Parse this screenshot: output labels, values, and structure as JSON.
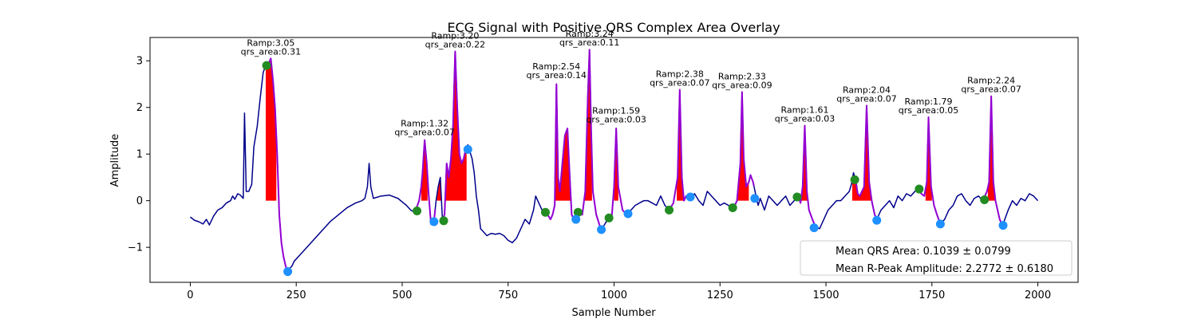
{
  "chart_data": {
    "type": "line",
    "title": "ECG Signal with Positive QRS Complex Area Overlay",
    "xlabel": "Sample Number",
    "ylabel": "Amplitude",
    "xlim": [
      -95,
      2095
    ],
    "ylim": [
      -1.75,
      3.5
    ],
    "xticks": [
      0,
      250,
      500,
      750,
      1000,
      1250,
      1500,
      1750,
      2000
    ],
    "yticks": [
      -1,
      0,
      1,
      2,
      3
    ],
    "grid": false,
    "legend_position": "lower-right",
    "legend": [
      "Mean QRS Area: 0.1039 ± 0.0799",
      "Mean R-Peak Amplitude: 2.2772 ± 0.6180"
    ],
    "colors": {
      "signal": "#00008b",
      "qrs_segment": "#9400d3",
      "area_fill": "#ff0000",
      "onset_marker": "#228b22",
      "offset_marker": "#1e90ff"
    },
    "signal_keypoints": [
      [
        0,
        -0.35
      ],
      [
        10,
        -0.42
      ],
      [
        20,
        -0.45
      ],
      [
        30,
        -0.5
      ],
      [
        38,
        -0.4
      ],
      [
        45,
        -0.52
      ],
      [
        55,
        -0.33
      ],
      [
        65,
        -0.2
      ],
      [
        75,
        -0.15
      ],
      [
        85,
        -0.05
      ],
      [
        95,
        0.0
      ],
      [
        100,
        0.1
      ],
      [
        105,
        0.03
      ],
      [
        112,
        0.15
      ],
      [
        118,
        0.12
      ],
      [
        125,
        0.05
      ],
      [
        128,
        1.88
      ],
      [
        132,
        0.2
      ],
      [
        138,
        0.2
      ],
      [
        145,
        0.35
      ],
      [
        150,
        1.15
      ],
      [
        158,
        1.6
      ],
      [
        165,
        2.2
      ],
      [
        172,
        2.75
      ],
      [
        178,
        2.9
      ],
      [
        185,
        2.95
      ],
      [
        190,
        3.05
      ],
      [
        195,
        2.6
      ],
      [
        200,
        2.0
      ],
      [
        205,
        1.0
      ],
      [
        210,
        -0.3
      ],
      [
        215,
        -0.9
      ],
      [
        220,
        -1.2
      ],
      [
        225,
        -1.4
      ],
      [
        230,
        -1.52
      ],
      [
        235,
        -1.45
      ],
      [
        240,
        -1.4
      ],
      [
        245,
        -1.3
      ],
      [
        255,
        -1.2
      ],
      [
        270,
        -1.05
      ],
      [
        290,
        -0.85
      ],
      [
        310,
        -0.65
      ],
      [
        330,
        -0.45
      ],
      [
        350,
        -0.3
      ],
      [
        370,
        -0.15
      ],
      [
        390,
        -0.05
      ],
      [
        405,
        0.0
      ],
      [
        412,
        0.05
      ],
      [
        418,
        0.3
      ],
      [
        422,
        0.8
      ],
      [
        426,
        0.3
      ],
      [
        432,
        0.05
      ],
      [
        450,
        0.1
      ],
      [
        470,
        0.12
      ],
      [
        490,
        0.05
      ],
      [
        510,
        -0.1
      ],
      [
        520,
        -0.2
      ],
      [
        530,
        -0.25
      ],
      [
        540,
        0.0
      ],
      [
        545,
        0.3
      ],
      [
        548,
        0.6
      ],
      [
        553,
        1.3
      ],
      [
        558,
        0.8
      ],
      [
        562,
        0.2
      ],
      [
        568,
        -0.5
      ],
      [
        575,
        -0.45
      ],
      [
        580,
        0.0
      ],
      [
        585,
        0.3
      ],
      [
        590,
        0.5
      ],
      [
        595,
        -0.4
      ],
      [
        600,
        -0.3
      ],
      [
        605,
        0.8
      ],
      [
        610,
        0.5
      ],
      [
        615,
        0.9
      ],
      [
        620,
        1.6
      ],
      [
        625,
        3.2
      ],
      [
        630,
        2.0
      ],
      [
        635,
        1.0
      ],
      [
        640,
        0.8
      ],
      [
        645,
        0.9
      ],
      [
        650,
        1.1
      ],
      [
        655,
        1.2
      ],
      [
        660,
        1.05
      ],
      [
        665,
        0.9
      ],
      [
        670,
        0.6
      ],
      [
        675,
        0.1
      ],
      [
        680,
        -0.2
      ],
      [
        685,
        -0.6
      ],
      [
        690,
        -0.65
      ],
      [
        700,
        -0.75
      ],
      [
        710,
        -0.7
      ],
      [
        720,
        -0.72
      ],
      [
        730,
        -0.7
      ],
      [
        740,
        -0.75
      ],
      [
        750,
        -0.85
      ],
      [
        760,
        -0.9
      ],
      [
        770,
        -0.8
      ],
      [
        780,
        -0.6
      ],
      [
        790,
        -0.4
      ],
      [
        800,
        -0.5
      ],
      [
        810,
        -0.2
      ],
      [
        815,
        0.1
      ],
      [
        820,
        0.0
      ],
      [
        830,
        -0.2
      ],
      [
        840,
        -0.25
      ],
      [
        850,
        -0.4
      ],
      [
        855,
        -0.3
      ],
      [
        860,
        -0.1
      ],
      [
        864,
        2.5
      ],
      [
        868,
        0.5
      ],
      [
        872,
        0.2
      ],
      [
        878,
        0.8
      ],
      [
        884,
        1.4
      ],
      [
        890,
        1.55
      ],
      [
        895,
        0.6
      ],
      [
        900,
        -0.3
      ],
      [
        908,
        -0.45
      ],
      [
        912,
        -0.25
      ],
      [
        918,
        -0.3
      ],
      [
        925,
        -0.3
      ],
      [
        932,
        0.2
      ],
      [
        938,
        2.2
      ],
      [
        942,
        3.24
      ],
      [
        946,
        1.5
      ],
      [
        950,
        0.2
      ],
      [
        958,
        -0.3
      ],
      [
        965,
        -0.5
      ],
      [
        970,
        -0.65
      ],
      [
        975,
        -0.55
      ],
      [
        985,
        -0.4
      ],
      [
        995,
        -0.3
      ],
      [
        1000,
        0.3
      ],
      [
        1005,
        1.55
      ],
      [
        1010,
        0.3
      ],
      [
        1020,
        -0.2
      ],
      [
        1030,
        -0.3
      ],
      [
        1040,
        -0.2
      ],
      [
        1050,
        -0.1
      ],
      [
        1060,
        -0.05
      ],
      [
        1070,
        0.0
      ],
      [
        1080,
        0.0
      ],
      [
        1090,
        -0.05
      ],
      [
        1100,
        -0.1
      ],
      [
        1110,
        0.1
      ],
      [
        1120,
        -0.1
      ],
      [
        1130,
        -0.2
      ],
      [
        1140,
        -0.05
      ],
      [
        1150,
        0.5
      ],
      [
        1155,
        2.38
      ],
      [
        1160,
        0.5
      ],
      [
        1165,
        0.0
      ],
      [
        1170,
        0.1
      ],
      [
        1180,
        0.05
      ],
      [
        1190,
        0.15
      ],
      [
        1200,
        0.0
      ],
      [
        1210,
        -0.1
      ],
      [
        1220,
        0.2
      ],
      [
        1230,
        0.1
      ],
      [
        1240,
        0.0
      ],
      [
        1250,
        -0.1
      ],
      [
        1260,
        -0.05
      ],
      [
        1270,
        -0.1
      ],
      [
        1280,
        -0.2
      ],
      [
        1290,
        0.0
      ],
      [
        1298,
        0.8
      ],
      [
        1302,
        2.33
      ],
      [
        1306,
        0.9
      ],
      [
        1312,
        0.3
      ],
      [
        1318,
        0.4
      ],
      [
        1322,
        0.55
      ],
      [
        1328,
        0.4
      ],
      [
        1335,
        0.1
      ],
      [
        1340,
        -0.1
      ],
      [
        1345,
        0.05
      ],
      [
        1355,
        -0.2
      ],
      [
        1365,
        0.1
      ],
      [
        1375,
        0.0
      ],
      [
        1385,
        -0.1
      ],
      [
        1395,
        0.0
      ],
      [
        1405,
        0.1
      ],
      [
        1415,
        -0.1
      ],
      [
        1425,
        0.0
      ],
      [
        1435,
        0.1
      ],
      [
        1440,
        -0.05
      ],
      [
        1445,
        0.3
      ],
      [
        1450,
        1.61
      ],
      [
        1455,
        0.2
      ],
      [
        1460,
        -0.2
      ],
      [
        1468,
        -0.4
      ],
      [
        1475,
        -0.55
      ],
      [
        1485,
        -0.6
      ],
      [
        1495,
        -0.4
      ],
      [
        1505,
        -0.2
      ],
      [
        1515,
        -0.1
      ],
      [
        1525,
        0.0
      ],
      [
        1535,
        0.0
      ],
      [
        1545,
        0.1
      ],
      [
        1555,
        0.2
      ],
      [
        1560,
        0.35
      ],
      [
        1565,
        0.6
      ],
      [
        1570,
        0.45
      ],
      [
        1575,
        0.15
      ],
      [
        1580,
        0.1
      ],
      [
        1590,
        0.3
      ],
      [
        1596,
        2.04
      ],
      [
        1602,
        0.4
      ],
      [
        1608,
        0.0
      ],
      [
        1615,
        -0.3
      ],
      [
        1620,
        -0.4
      ],
      [
        1630,
        -0.2
      ],
      [
        1640,
        -0.1
      ],
      [
        1650,
        0.0
      ],
      [
        1660,
        -0.15
      ],
      [
        1670,
        0.1
      ],
      [
        1680,
        0.0
      ],
      [
        1690,
        0.15
      ],
      [
        1700,
        0.1
      ],
      [
        1710,
        0.2
      ],
      [
        1718,
        0.25
      ],
      [
        1725,
        0.15
      ],
      [
        1732,
        0.1
      ],
      [
        1738,
        0.4
      ],
      [
        1742,
        1.79
      ],
      [
        1748,
        0.3
      ],
      [
        1755,
        -0.1
      ],
      [
        1762,
        -0.3
      ],
      [
        1770,
        -0.5
      ],
      [
        1780,
        -0.4
      ],
      [
        1790,
        -0.2
      ],
      [
        1800,
        -0.1
      ],
      [
        1810,
        0.1
      ],
      [
        1820,
        0.15
      ],
      [
        1830,
        0.0
      ],
      [
        1840,
        -0.1
      ],
      [
        1850,
        0.05
      ],
      [
        1860,
        0.1
      ],
      [
        1870,
        0.0
      ],
      [
        1880,
        0.2
      ],
      [
        1885,
        0.4
      ],
      [
        1890,
        2.24
      ],
      [
        1895,
        0.4
      ],
      [
        1900,
        0.0
      ],
      [
        1905,
        -0.2
      ],
      [
        1910,
        -0.4
      ],
      [
        1915,
        -0.5
      ],
      [
        1920,
        -0.45
      ],
      [
        1930,
        -0.2
      ],
      [
        1940,
        0.0
      ],
      [
        1950,
        -0.1
      ],
      [
        1960,
        0.05
      ],
      [
        1970,
        0.0
      ],
      [
        1980,
        0.15
      ],
      [
        1990,
        0.1
      ],
      [
        2000,
        0.0
      ]
    ],
    "qrs_segments": [
      [
        178,
        232
      ],
      [
        530,
        578
      ],
      [
        595,
        652
      ],
      [
        838,
        912
      ],
      [
        922,
        968
      ],
      [
        985,
        1030
      ],
      [
        1128,
        1178
      ],
      [
        1278,
        1330
      ],
      [
        1430,
        1472
      ],
      [
        1568,
        1620
      ],
      [
        1718,
        1768
      ],
      [
        1872,
        1918
      ]
    ],
    "area_fill_ranges": [
      [
        178,
        203
      ],
      [
        545,
        560
      ],
      [
        582,
        592
      ],
      [
        600,
        652
      ],
      [
        858,
        905
      ],
      [
        930,
        948
      ],
      [
        1000,
        1010
      ],
      [
        1148,
        1165
      ],
      [
        1290,
        1318
      ],
      [
        1440,
        1458
      ],
      [
        1562,
        1610
      ],
      [
        1735,
        1750
      ],
      [
        1882,
        1898
      ]
    ],
    "onset_markers": [
      [
        180,
        2.9
      ],
      [
        535,
        -0.22
      ],
      [
        598,
        -0.43
      ],
      [
        838,
        -0.25
      ],
      [
        915,
        -0.25
      ],
      [
        988,
        -0.37
      ],
      [
        1130,
        -0.2
      ],
      [
        1280,
        -0.15
      ],
      [
        1432,
        0.08
      ],
      [
        1568,
        0.45
      ],
      [
        1720,
        0.25
      ],
      [
        1874,
        0.02
      ]
    ],
    "offset_markers": [
      [
        230,
        -1.52
      ],
      [
        575,
        -0.45
      ],
      [
        655,
        1.1
      ],
      [
        910,
        -0.4
      ],
      [
        970,
        -0.62
      ],
      [
        1033,
        -0.28
      ],
      [
        1180,
        0.08
      ],
      [
        1332,
        0.05
      ],
      [
        1472,
        -0.58
      ],
      [
        1620,
        -0.42
      ],
      [
        1770,
        -0.5
      ],
      [
        1918,
        -0.53
      ]
    ],
    "annotations": [
      {
        "x": 190,
        "y": 3.05,
        "lines": [
          "Ramp:3.05",
          "qrs_area:0.31"
        ]
      },
      {
        "x": 553,
        "y": 1.32,
        "lines": [
          "Ramp:1.32",
          "qrs_area:0.07"
        ]
      },
      {
        "x": 625,
        "y": 3.2,
        "lines": [
          "Ramp:3.20",
          "qrs_area:0.22"
        ]
      },
      {
        "x": 864,
        "y": 2.54,
        "lines": [
          "Ramp:2.54",
          "qrs_area:0.14"
        ]
      },
      {
        "x": 942,
        "y": 3.24,
        "lines": [
          "Ramp:3.24",
          "qrs_area:0.11"
        ]
      },
      {
        "x": 1005,
        "y": 1.59,
        "lines": [
          "Ramp:1.59",
          "qrs_area:0.03"
        ]
      },
      {
        "x": 1155,
        "y": 2.38,
        "lines": [
          "Ramp:2.38",
          "qrs_area:0.07"
        ]
      },
      {
        "x": 1302,
        "y": 2.33,
        "lines": [
          "Ramp:2.33",
          "qrs_area:0.09"
        ]
      },
      {
        "x": 1450,
        "y": 1.61,
        "lines": [
          "Ramp:1.61",
          "qrs_area:0.03"
        ]
      },
      {
        "x": 1596,
        "y": 2.04,
        "lines": [
          "Ramp:2.04",
          "qrs_area:0.07"
        ]
      },
      {
        "x": 1742,
        "y": 1.79,
        "lines": [
          "Ramp:1.79",
          "qrs_area:0.05"
        ]
      },
      {
        "x": 1890,
        "y": 2.24,
        "lines": [
          "Ramp:2.24",
          "qrs_area:0.07"
        ]
      }
    ]
  }
}
